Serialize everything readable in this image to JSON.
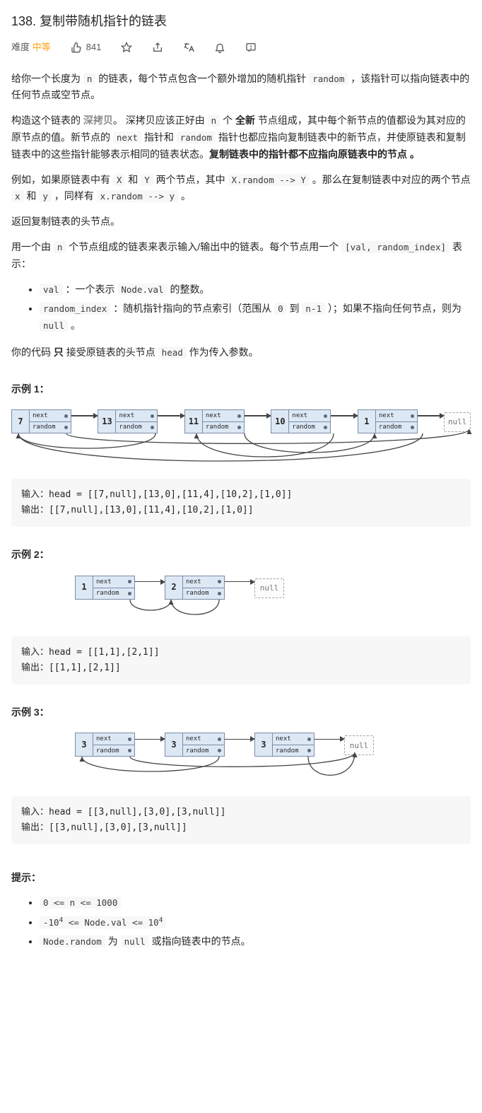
{
  "header": {
    "number": "138.",
    "title": "复制带随机指针的链表",
    "difficulty_label": "难度",
    "difficulty_value": "中等",
    "likes": "841",
    "icons": [
      "thumbs-up-icon",
      "star-icon",
      "share-icon",
      "translate-icon",
      "bell-icon",
      "feedback-icon"
    ]
  },
  "body": {
    "p1_a": "给你一个长度为 ",
    "p1_code_n": "n",
    "p1_b": " 的链表，每个节点包含一个额外增加的随机指针 ",
    "p1_code_random": "random",
    "p1_c": " ，该指针可以指向链表中的任何节点或空节点。",
    "p2_a": "构造这个链表的 ",
    "p2_deepcopy": "深拷贝",
    "p2_b": "。 深拷贝应该正好由 ",
    "p2_c": " 个 ",
    "p2_new": "全新",
    "p2_d": " 节点组成，其中每个新节点的值都设为其对应的原节点的值。新节点的 ",
    "p2_code_next": "next",
    "p2_e": " 指针和 ",
    "p2_f": " 指针也都应指向复制链表中的新节点，并使原链表和复制链表中的这些指针能够表示相同的链表状态。",
    "p2_strong": "复制链表中的指针都不应指向原链表中的节点 。",
    "p3_a": "例如，如果原链表中有 ",
    "p3_X": "X",
    "p3_b": " 和 ",
    "p3_Y": "Y",
    "p3_c": " 两个节点，其中 ",
    "p3_code_xr": "X.random --> Y",
    "p3_d": " 。那么在复制链表中对应的两个节点 ",
    "p3_x": "x",
    "p3_e": " 和 ",
    "p3_y": "y",
    "p3_f": " ，同样有 ",
    "p3_code_xr2": "x.random --> y",
    "p3_g": " 。",
    "p4": "返回复制链表的头节点。",
    "p5_a": "用一个由 ",
    "p5_b": " 个节点组成的链表来表示输入/输出中的链表。每个节点用一个 ",
    "p5_code_pair": "[val, random_index]",
    "p5_c": " 表示：",
    "li1_a": "val",
    "li1_b": " ：一个表示 ",
    "li1_c": "Node.val",
    "li1_d": " 的整数。",
    "li2_a": "random_index",
    "li2_b": " ：随机指针指向的节点索引（范围从 ",
    "li2_c": "0",
    "li2_d": " 到 ",
    "li2_e": "n-1",
    "li2_f": " ）；如果不指向任何节点，则为 ",
    "li2_g": "null",
    "li2_h": " 。",
    "p6_a": "你的代码 ",
    "p6_only": "只",
    "p6_b": " 接受原链表的头节点 ",
    "p6_c": "head",
    "p6_d": " 作为传入参数。"
  },
  "node_labels": {
    "next": "next",
    "random": "random",
    "null": "null"
  },
  "node_colors": {
    "fill": "#dde8f5",
    "border": "#7a8da5",
    "arrow": "#444444",
    "null_border": "#99aaaa"
  },
  "examples": {
    "ex1": {
      "head": "示例 1：",
      "nodes": [
        {
          "val": "7",
          "random": null
        },
        {
          "val": "13",
          "random": 0
        },
        {
          "val": "11",
          "random": 4
        },
        {
          "val": "10",
          "random": 2
        },
        {
          "val": "1",
          "random": 0
        }
      ],
      "io": "输入：head = [[7,null],[13,0],[11,4],[10,2],[1,0]]\n输出：[[7,null],[13,0],[11,4],[10,2],[1,0]]"
    },
    "ex2": {
      "head": "示例 2：",
      "nodes": [
        {
          "val": "1",
          "random": 1
        },
        {
          "val": "2",
          "random": 1
        }
      ],
      "io": "输入：head = [[1,1],[2,1]]\n输出：[[1,1],[2,1]]"
    },
    "ex3": {
      "head": "示例 3：",
      "nodes": [
        {
          "val": "3",
          "random": null
        },
        {
          "val": "3",
          "random": 0
        },
        {
          "val": "3",
          "random": null
        }
      ],
      "io": "输入：head = [[3,null],[3,0],[3,null]]\n输出：[[3,null],[3,0],[3,null]]"
    }
  },
  "constraints": {
    "head": "提示：",
    "c1": "0 <= n <= 1000",
    "c2_a": "-10",
    "c2_b": "4",
    "c2_c": " <= Node.val <= 10",
    "c2_d": "4",
    "c3_a": "Node.random",
    "c3_b": " 为 ",
    "c3_c": "null",
    "c3_d": " 或指向链表中的节点。"
  }
}
